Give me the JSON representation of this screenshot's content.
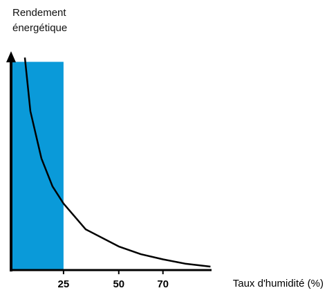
{
  "chart_data": {
    "type": "line",
    "ylabel": "Rendement énergétique",
    "xlabel": "Taux d'humidité (%)",
    "x": [
      7.5,
      10,
      15,
      20,
      25,
      35,
      50,
      60,
      70,
      80,
      91.5
    ],
    "series": [
      {
        "color": "#000000",
        "values": [
          99,
          74,
          52,
          39,
          31,
          19,
          11,
          7.4,
          5,
          3,
          1.6
        ]
      }
    ],
    "highlight": {
      "x": [
        0,
        25
      ],
      "value": 97,
      "color": "#0a9ad9"
    },
    "xlim": [
      0,
      92
    ],
    "ylim": [
      0,
      100
    ],
    "xticks": [
      25,
      50,
      70
    ]
  }
}
